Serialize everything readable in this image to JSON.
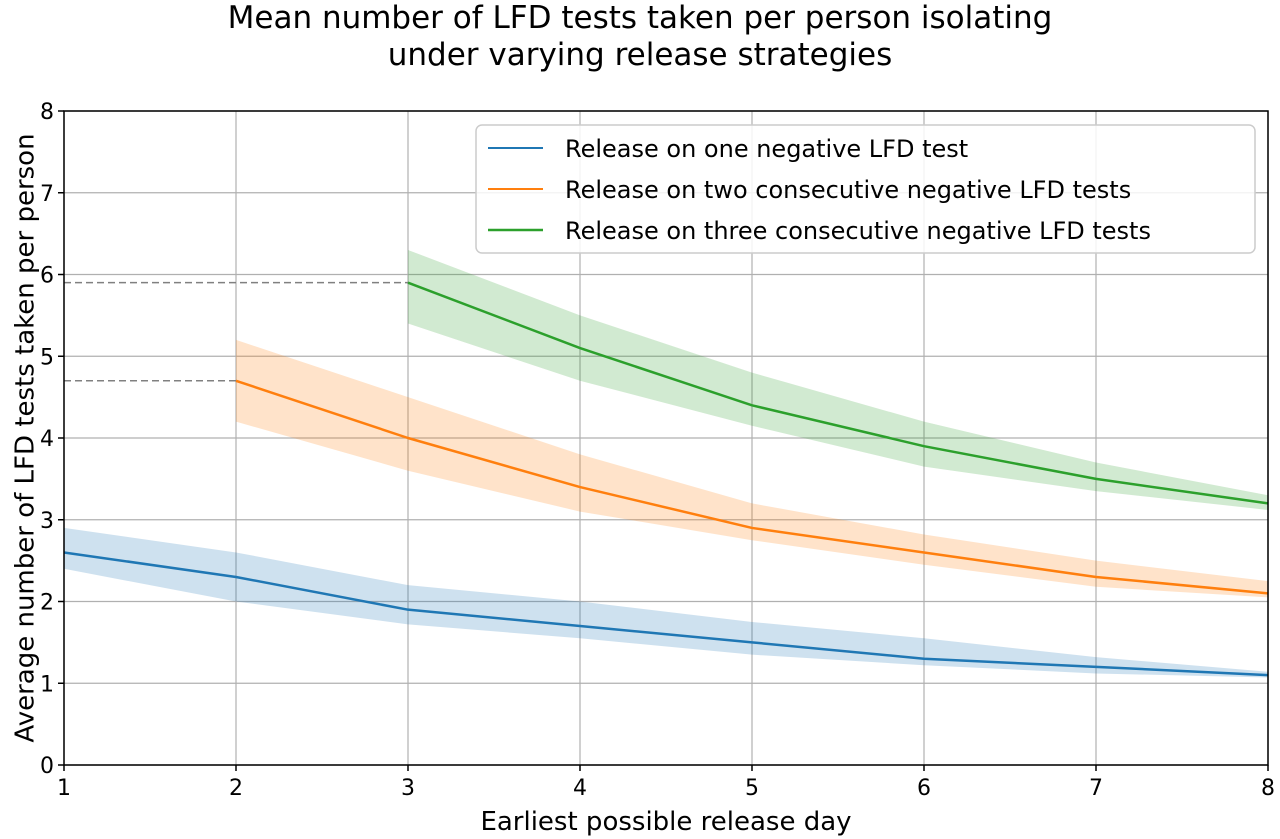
{
  "chart_data": {
    "type": "line",
    "title_lines": [
      "Mean number of LFD tests taken per person isolating",
      "under varying release strategies"
    ],
    "xlabel": "Earliest possible release day",
    "ylabel": "Average number of LFD tests taken per person",
    "xlim": [
      1,
      8
    ],
    "ylim": [
      0,
      8
    ],
    "xticks": [
      1,
      2,
      3,
      4,
      5,
      6,
      7,
      8
    ],
    "yticks": [
      0,
      1,
      2,
      3,
      4,
      5,
      6,
      7,
      8
    ],
    "grid": true,
    "legend_position": "top-right",
    "series": [
      {
        "name": "Release on one negative LFD test",
        "color": "#1f77b4",
        "x": [
          1,
          2,
          3,
          4,
          5,
          6,
          7,
          8
        ],
        "y": [
          2.6,
          2.3,
          1.9,
          1.7,
          1.5,
          1.3,
          1.2,
          1.1
        ],
        "lower": [
          2.4,
          2.0,
          1.72,
          1.55,
          1.35,
          1.22,
          1.12,
          1.07
        ],
        "upper": [
          2.9,
          2.6,
          2.2,
          2.0,
          1.75,
          1.55,
          1.32,
          1.14
        ]
      },
      {
        "name": "Release on two consecutive negative LFD tests",
        "color": "#ff7f0e",
        "x": [
          2,
          3,
          4,
          5,
          6,
          7,
          8
        ],
        "y": [
          4.7,
          4.0,
          3.4,
          2.9,
          2.6,
          2.3,
          2.1
        ],
        "lower": [
          4.2,
          3.6,
          3.1,
          2.75,
          2.45,
          2.18,
          2.05
        ],
        "upper": [
          5.2,
          4.5,
          3.8,
          3.2,
          2.82,
          2.5,
          2.25
        ]
      },
      {
        "name": "Release on three consecutive negative LFD tests",
        "color": "#2ca02c",
        "x": [
          3,
          4,
          5,
          6,
          7,
          8
        ],
        "y": [
          5.9,
          5.1,
          4.4,
          3.9,
          3.5,
          3.2
        ],
        "lower": [
          5.4,
          4.7,
          4.15,
          3.65,
          3.35,
          3.12
        ],
        "upper": [
          6.3,
          5.5,
          4.8,
          4.2,
          3.7,
          3.3
        ]
      }
    ],
    "reference_lines": [
      {
        "y": 5.9,
        "x_from": 1,
        "x_to": 3
      },
      {
        "y": 4.7,
        "x_from": 1,
        "x_to": 2
      }
    ]
  }
}
